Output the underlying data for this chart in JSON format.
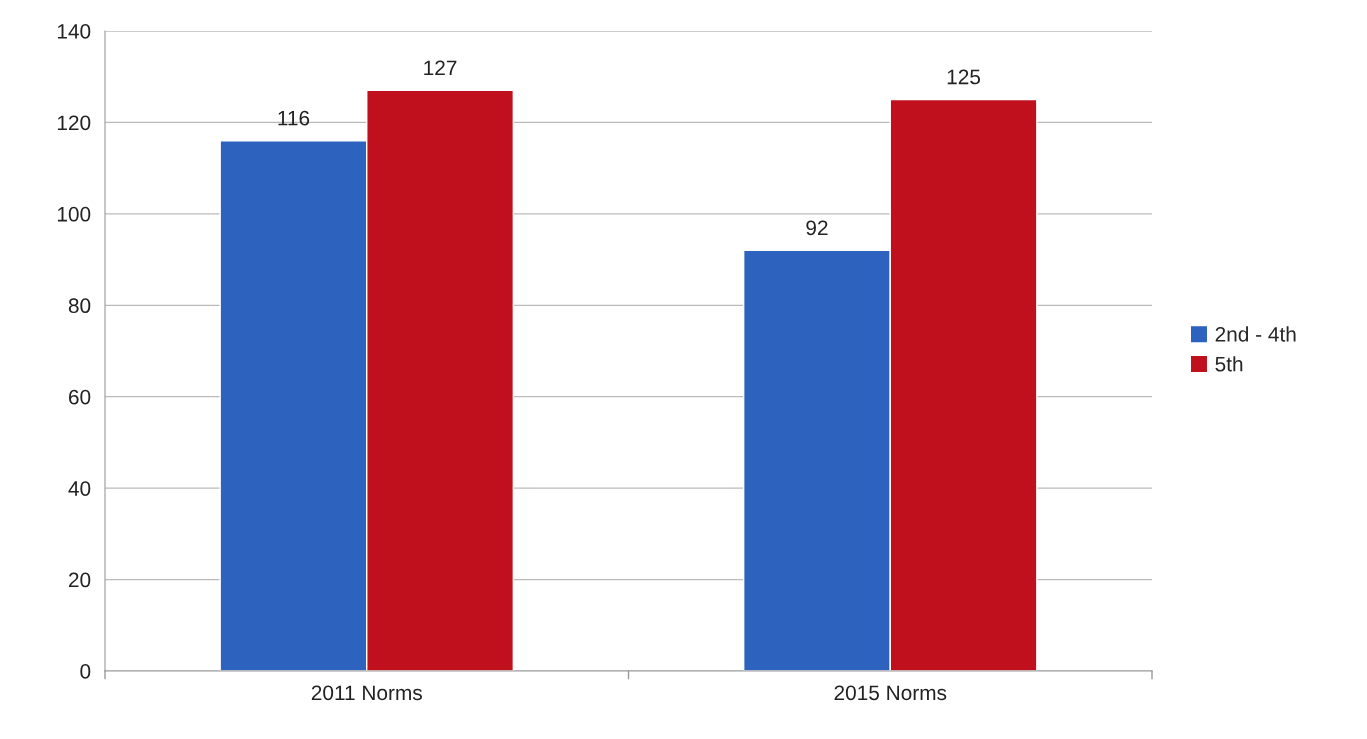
{
  "chart_data": {
    "type": "bar",
    "categories": [
      "2011 Norms",
      "2015 Norms"
    ],
    "series": [
      {
        "name": "2nd - 4th",
        "color": "#2e62bf",
        "values": [
          116,
          92
        ]
      },
      {
        "name": "5th",
        "color": "#c0101e",
        "values": [
          127,
          125
        ]
      }
    ],
    "ylim": [
      0,
      140
    ],
    "yticks": [
      0,
      20,
      40,
      60,
      80,
      100,
      120,
      140
    ],
    "grid": "y",
    "legend": "right",
    "data_labels": true
  }
}
